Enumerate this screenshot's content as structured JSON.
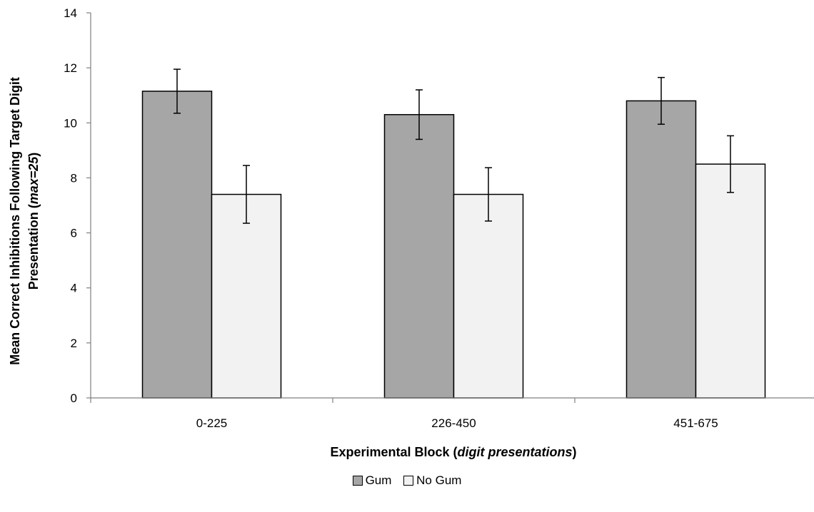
{
  "chart_data": {
    "type": "bar",
    "categories": [
      "0-225",
      "226-450",
      "451-675"
    ],
    "series": [
      {
        "name": "Gum",
        "values": [
          11.15,
          10.3,
          10.8
        ],
        "errors": [
          0.8,
          0.9,
          0.85
        ],
        "color": "#a6a6a6"
      },
      {
        "name": "No Gum",
        "values": [
          7.4,
          7.4,
          8.5
        ],
        "errors": [
          1.05,
          0.97,
          1.03
        ],
        "color": "#f2f2f2"
      }
    ],
    "ylim": [
      0,
      14
    ],
    "yticks": [
      "0",
      "2",
      "4",
      "6",
      "8",
      "10",
      "12",
      "14"
    ],
    "xlabel": {
      "part1": "Experimental Block (",
      "italic": "digit presentations",
      "part2": ")"
    },
    "ylabel": {
      "line1": "Mean Correct Inhibitions Following Target Digit",
      "line2_part1": "Presentation (",
      "line2_italic": "max=25",
      "line2_part2": ")"
    },
    "grid": false,
    "legend_position": "bottom"
  }
}
